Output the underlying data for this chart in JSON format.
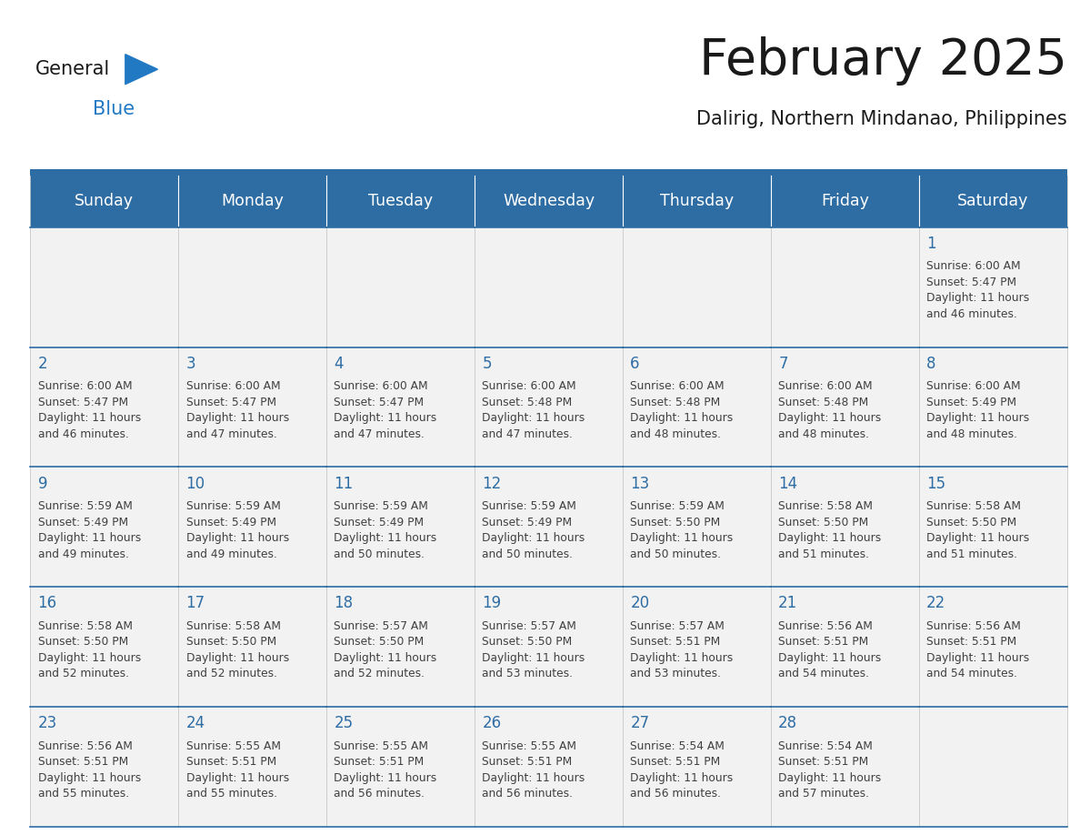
{
  "title": "February 2025",
  "subtitle": "Dalirig, Northern Mindanao, Philippines",
  "days_of_week": [
    "Sunday",
    "Monday",
    "Tuesday",
    "Wednesday",
    "Thursday",
    "Friday",
    "Saturday"
  ],
  "header_bg": "#2E6DA4",
  "header_text_color": "#FFFFFF",
  "cell_bg": "#F2F2F2",
  "border_color": "#2E6DA4",
  "day_num_color": "#2E6DA4",
  "cell_text_color": "#404040",
  "logo_general_color": "#1a1a1a",
  "logo_blue_color": "#2179C4",
  "title_color": "#1a1a1a",
  "subtitle_color": "#1a1a1a",
  "calendar": [
    [
      null,
      null,
      null,
      null,
      null,
      null,
      {
        "day": 1,
        "sunrise": "6:00 AM",
        "sunset": "5:47 PM",
        "daylight_hours": "11 hours",
        "daylight_min": "and 46 minutes."
      }
    ],
    [
      {
        "day": 2,
        "sunrise": "6:00 AM",
        "sunset": "5:47 PM",
        "daylight_hours": "11 hours",
        "daylight_min": "and 46 minutes."
      },
      {
        "day": 3,
        "sunrise": "6:00 AM",
        "sunset": "5:47 PM",
        "daylight_hours": "11 hours",
        "daylight_min": "and 47 minutes."
      },
      {
        "day": 4,
        "sunrise": "6:00 AM",
        "sunset": "5:47 PM",
        "daylight_hours": "11 hours",
        "daylight_min": "and 47 minutes."
      },
      {
        "day": 5,
        "sunrise": "6:00 AM",
        "sunset": "5:48 PM",
        "daylight_hours": "11 hours",
        "daylight_min": "and 47 minutes."
      },
      {
        "day": 6,
        "sunrise": "6:00 AM",
        "sunset": "5:48 PM",
        "daylight_hours": "11 hours",
        "daylight_min": "and 48 minutes."
      },
      {
        "day": 7,
        "sunrise": "6:00 AM",
        "sunset": "5:48 PM",
        "daylight_hours": "11 hours",
        "daylight_min": "and 48 minutes."
      },
      {
        "day": 8,
        "sunrise": "6:00 AM",
        "sunset": "5:49 PM",
        "daylight_hours": "11 hours",
        "daylight_min": "and 48 minutes."
      }
    ],
    [
      {
        "day": 9,
        "sunrise": "5:59 AM",
        "sunset": "5:49 PM",
        "daylight_hours": "11 hours",
        "daylight_min": "and 49 minutes."
      },
      {
        "day": 10,
        "sunrise": "5:59 AM",
        "sunset": "5:49 PM",
        "daylight_hours": "11 hours",
        "daylight_min": "and 49 minutes."
      },
      {
        "day": 11,
        "sunrise": "5:59 AM",
        "sunset": "5:49 PM",
        "daylight_hours": "11 hours",
        "daylight_min": "and 50 minutes."
      },
      {
        "day": 12,
        "sunrise": "5:59 AM",
        "sunset": "5:49 PM",
        "daylight_hours": "11 hours",
        "daylight_min": "and 50 minutes."
      },
      {
        "day": 13,
        "sunrise": "5:59 AM",
        "sunset": "5:50 PM",
        "daylight_hours": "11 hours",
        "daylight_min": "and 50 minutes."
      },
      {
        "day": 14,
        "sunrise": "5:58 AM",
        "sunset": "5:50 PM",
        "daylight_hours": "11 hours",
        "daylight_min": "and 51 minutes."
      },
      {
        "day": 15,
        "sunrise": "5:58 AM",
        "sunset": "5:50 PM",
        "daylight_hours": "11 hours",
        "daylight_min": "and 51 minutes."
      }
    ],
    [
      {
        "day": 16,
        "sunrise": "5:58 AM",
        "sunset": "5:50 PM",
        "daylight_hours": "11 hours",
        "daylight_min": "and 52 minutes."
      },
      {
        "day": 17,
        "sunrise": "5:58 AM",
        "sunset": "5:50 PM",
        "daylight_hours": "11 hours",
        "daylight_min": "and 52 minutes."
      },
      {
        "day": 18,
        "sunrise": "5:57 AM",
        "sunset": "5:50 PM",
        "daylight_hours": "11 hours",
        "daylight_min": "and 52 minutes."
      },
      {
        "day": 19,
        "sunrise": "5:57 AM",
        "sunset": "5:50 PM",
        "daylight_hours": "11 hours",
        "daylight_min": "and 53 minutes."
      },
      {
        "day": 20,
        "sunrise": "5:57 AM",
        "sunset": "5:51 PM",
        "daylight_hours": "11 hours",
        "daylight_min": "and 53 minutes."
      },
      {
        "day": 21,
        "sunrise": "5:56 AM",
        "sunset": "5:51 PM",
        "daylight_hours": "11 hours",
        "daylight_min": "and 54 minutes."
      },
      {
        "day": 22,
        "sunrise": "5:56 AM",
        "sunset": "5:51 PM",
        "daylight_hours": "11 hours",
        "daylight_min": "and 54 minutes."
      }
    ],
    [
      {
        "day": 23,
        "sunrise": "5:56 AM",
        "sunset": "5:51 PM",
        "daylight_hours": "11 hours",
        "daylight_min": "and 55 minutes."
      },
      {
        "day": 24,
        "sunrise": "5:55 AM",
        "sunset": "5:51 PM",
        "daylight_hours": "11 hours",
        "daylight_min": "and 55 minutes."
      },
      {
        "day": 25,
        "sunrise": "5:55 AM",
        "sunset": "5:51 PM",
        "daylight_hours": "11 hours",
        "daylight_min": "and 56 minutes."
      },
      {
        "day": 26,
        "sunrise": "5:55 AM",
        "sunset": "5:51 PM",
        "daylight_hours": "11 hours",
        "daylight_min": "and 56 minutes."
      },
      {
        "day": 27,
        "sunrise": "5:54 AM",
        "sunset": "5:51 PM",
        "daylight_hours": "11 hours",
        "daylight_min": "and 56 minutes."
      },
      {
        "day": 28,
        "sunrise": "5:54 AM",
        "sunset": "5:51 PM",
        "daylight_hours": "11 hours",
        "daylight_min": "and 57 minutes."
      },
      null
    ]
  ],
  "figsize": [
    11.88,
    9.18
  ],
  "dpi": 100
}
